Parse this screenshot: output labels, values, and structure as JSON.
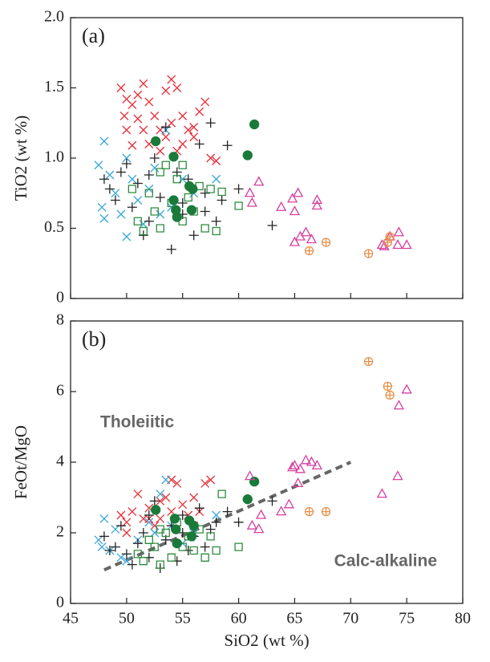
{
  "chart_data": [
    {
      "type": "scatter",
      "panel_label": "(a)",
      "ylabel": "TiO2 (wt %)",
      "xlim": [
        45,
        80
      ],
      "xticks": [
        45,
        50,
        55,
        60,
        65,
        70,
        75,
        80
      ],
      "ylim": [
        0,
        2
      ],
      "yticks": [
        0,
        0.5,
        {
          "value": 1,
          "label": "1.0"
        },
        1.5,
        {
          "value": 2,
          "label": "2.0"
        }
      ],
      "series": [
        {
          "marker": "x",
          "color": "#e8303a",
          "x": [
            49.5,
            50,
            50.5,
            51,
            51.5,
            52,
            52.5,
            53,
            53.5,
            54,
            54.5,
            55,
            55.5,
            56,
            56.5,
            57,
            57.5,
            50,
            51,
            52,
            53,
            54,
            55,
            56,
            50.5,
            53.5,
            49.8,
            51.5,
            54.5,
            58
          ],
          "values": [
            1.5,
            1.42,
            1.38,
            1.45,
            1.53,
            1.4,
            1.3,
            1.2,
            1.48,
            1.56,
            1.5,
            1.3,
            1.2,
            1.15,
            1.33,
            1.4,
            1.0,
            1.2,
            1.28,
            1.1,
            1.05,
            1.25,
            1.1,
            1.22,
            1.09,
            1.15,
            1.3,
            1.2,
            1.05,
            0.98
          ]
        },
        {
          "marker": "x",
          "color": "#3aa8d8",
          "x": [
            47.5,
            47.8,
            48,
            48.5,
            49,
            49.5,
            50,
            50.5,
            51,
            51.5,
            52,
            52.5,
            53,
            53.5,
            54,
            55,
            56,
            58,
            48,
            50
          ],
          "values": [
            0.95,
            0.65,
            0.57,
            0.88,
            0.75,
            0.6,
            0.44,
            0.85,
            0.7,
            0.53,
            0.78,
            0.93,
            0.6,
            1.2,
            0.65,
            0.85,
            0.75,
            0.85,
            1.12,
            1.0
          ]
        },
        {
          "marker": "+",
          "color": "#222222",
          "x": [
            48,
            48.5,
            49,
            49.5,
            50,
            50.5,
            51,
            51.5,
            52,
            52.5,
            53,
            53.5,
            54,
            54.5,
            55,
            55.5,
            56,
            56.5,
            57,
            57.5,
            58,
            58.5,
            59,
            60,
            63,
            52,
            55,
            57
          ],
          "values": [
            0.85,
            0.78,
            0.7,
            0.9,
            0.96,
            0.65,
            0.82,
            0.45,
            0.55,
            1.0,
            0.72,
            1.22,
            0.35,
            0.9,
            0.68,
            0.85,
            0.45,
            1.1,
            0.62,
            1.25,
            0.55,
            0.7,
            1.09,
            0.78,
            0.52,
            0.88,
            0.6,
            0.75
          ]
        },
        {
          "marker": "square",
          "color": "#2e8b3e",
          "x": [
            51,
            51.5,
            52,
            52.5,
            53,
            53.5,
            54,
            54.5,
            55,
            55.5,
            56,
            56.5,
            57,
            57.5,
            58,
            58.5,
            60,
            50.5,
            53,
            55
          ],
          "values": [
            0.55,
            0.48,
            0.75,
            0.62,
            0.5,
            0.95,
            0.68,
            0.85,
            0.55,
            0.72,
            0.62,
            0.8,
            0.5,
            0.78,
            0.48,
            0.76,
            0.66,
            0.78,
            0.9,
            0.95
          ]
        },
        {
          "marker": "dot",
          "color": "#1a7a3a",
          "x": [
            52.6,
            54.2,
            54.2,
            54.5,
            55.6,
            55.8,
            55.9,
            60.8,
            61.4,
            54.4
          ],
          "values": [
            1.12,
            1.01,
            0.7,
            0.58,
            0.8,
            0.63,
            0.78,
            1.02,
            1.24,
            0.63
          ]
        },
        {
          "marker": "triangle",
          "color": "#d63fa0",
          "x": [
            61,
            61.2,
            61.8,
            63.8,
            64.8,
            65,
            65.3,
            65,
            65.5,
            66,
            66.5,
            67,
            67,
            72.8,
            73,
            73.5,
            74.2,
            74.3,
            75
          ],
          "values": [
            0.75,
            0.68,
            0.83,
            0.65,
            0.71,
            0.62,
            0.75,
            0.4,
            0.44,
            0.47,
            0.42,
            0.7,
            0.66,
            0.38,
            0.37,
            0.44,
            0.38,
            0.47,
            0.38
          ]
        },
        {
          "marker": "circle-plus",
          "color": "#e8904a",
          "x": [
            66.3,
            67.8,
            71.6,
            73.3,
            73.5
          ],
          "values": [
            0.34,
            0.4,
            0.32,
            0.4,
            0.44
          ]
        }
      ]
    },
    {
      "type": "scatter",
      "panel_label": "(b)",
      "ylabel": "FeOt/MgO",
      "xlabel": "SiO2 (wt %)",
      "xlim": [
        45,
        80
      ],
      "xticks": [
        45,
        50,
        55,
        60,
        65,
        70,
        75,
        80
      ],
      "ylim": [
        0,
        8
      ],
      "yticks": [
        0,
        2,
        4,
        6,
        8
      ],
      "annotations": [
        "Tholeiitic",
        "Calc-alkaline"
      ],
      "trend": {
        "x": [
          48,
          70
        ],
        "values": [
          0.95,
          4.0
        ],
        "color": "#666666"
      },
      "series": [
        {
          "marker": "x",
          "color": "#e8303a",
          "x": [
            49.5,
            50,
            50.5,
            51,
            51.5,
            52,
            52.5,
            53,
            53.5,
            54,
            54.5,
            55,
            55.5,
            56,
            56.5,
            57,
            57.5,
            50,
            52,
            54,
            56,
            53
          ],
          "values": [
            2.5,
            2.3,
            2.6,
            3.1,
            2.4,
            2.7,
            2.2,
            2.9,
            3.0,
            3.5,
            3.4,
            2.8,
            2.5,
            3.0,
            2.6,
            3.4,
            3.5,
            2.0,
            2.4,
            2.6,
            2.2,
            2.4
          ]
        },
        {
          "marker": "x",
          "color": "#3aa8d8",
          "x": [
            47.5,
            47.8,
            48,
            48.5,
            49,
            49.5,
            50,
            51,
            52,
            52.5,
            53,
            53.5,
            54,
            55,
            56,
            58
          ],
          "values": [
            1.8,
            1.6,
            2.4,
            1.5,
            2.1,
            1.3,
            1.2,
            1.8,
            2.3,
            2.0,
            3.1,
            3.5,
            2.2,
            1.7,
            2.0,
            2.5
          ]
        },
        {
          "marker": "+",
          "color": "#222222",
          "x": [
            48,
            48.5,
            49,
            49.5,
            50,
            50.5,
            51,
            51.5,
            52,
            52.5,
            53,
            53.5,
            54,
            54.5,
            55,
            55.5,
            56,
            56.5,
            57,
            57.5,
            58,
            59,
            60,
            63,
            52,
            55
          ],
          "values": [
            1.9,
            1.5,
            1.6,
            2.2,
            1.4,
            1.1,
            1.7,
            2.0,
            1.3,
            2.9,
            1.0,
            1.8,
            2.2,
            1.2,
            2.5,
            1.5,
            1.9,
            2.7,
            1.6,
            2.1,
            2.3,
            2.6,
            2.3,
            2.9,
            2.5,
            2.0
          ]
        },
        {
          "marker": "square",
          "color": "#2e8b3e",
          "x": [
            51,
            51.5,
            52,
            52.5,
            53,
            53.5,
            54,
            54.5,
            55,
            55.5,
            56,
            56.5,
            57,
            57.5,
            58,
            58.5,
            60,
            53
          ],
          "values": [
            1.4,
            1.2,
            1.8,
            1.6,
            1.1,
            2.0,
            1.3,
            2.3,
            1.6,
            1.9,
            1.5,
            2.1,
            1.3,
            1.9,
            1.5,
            3.1,
            1.6,
            2.1
          ]
        },
        {
          "marker": "dot",
          "color": "#1a7a3a",
          "x": [
            52.6,
            54.3,
            54.4,
            54.5,
            55.6,
            55.8,
            56,
            60.8,
            61.4
          ],
          "values": [
            2.65,
            2.4,
            2.1,
            1.7,
            2.35,
            1.9,
            2.2,
            2.95,
            3.45
          ]
        },
        {
          "marker": "triangle",
          "color": "#d63fa0",
          "x": [
            61,
            61.2,
            61.8,
            62,
            63.8,
            64.5,
            64.8,
            65,
            65.3,
            65.5,
            66,
            66.5,
            67,
            72.8,
            74.2,
            74.3,
            75
          ],
          "values": [
            3.6,
            2.2,
            2.1,
            2.5,
            2.6,
            2.8,
            3.85,
            3.9,
            3.4,
            3.8,
            4.05,
            4.0,
            3.9,
            3.1,
            3.6,
            5.6,
            6.05
          ]
        },
        {
          "marker": "circle-plus",
          "color": "#e8904a",
          "x": [
            66.3,
            67.8,
            71.6,
            73.3,
            73.5
          ],
          "values": [
            2.6,
            2.6,
            6.85,
            6.15,
            5.9
          ]
        }
      ]
    }
  ]
}
